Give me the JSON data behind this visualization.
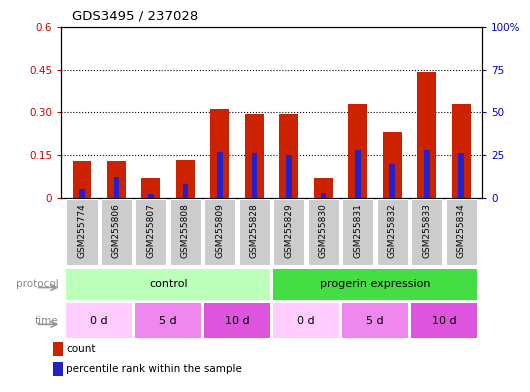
{
  "title": "GDS3495 / 237028",
  "samples": [
    "GSM255774",
    "GSM255806",
    "GSM255807",
    "GSM255808",
    "GSM255809",
    "GSM255828",
    "GSM255829",
    "GSM255830",
    "GSM255831",
    "GSM255832",
    "GSM255833",
    "GSM255834"
  ],
  "red_values": [
    0.13,
    0.13,
    0.068,
    0.132,
    0.31,
    0.295,
    0.293,
    0.068,
    0.33,
    0.23,
    0.44,
    0.33
  ],
  "blue_pct": [
    5,
    12,
    2,
    8,
    27,
    26,
    25,
    3,
    28,
    20,
    28,
    26
  ],
  "left_ylim": [
    0,
    0.6
  ],
  "right_ylim": [
    0,
    100
  ],
  "left_yticks": [
    0,
    0.15,
    0.3,
    0.45,
    0.6
  ],
  "left_yticklabels": [
    "0",
    "0.15",
    "0.30",
    "0.45",
    "0.6"
  ],
  "right_yticks": [
    0,
    25,
    50,
    75,
    100
  ],
  "right_yticklabels": [
    "0",
    "25",
    "50",
    "75",
    "100%"
  ],
  "left_color": "#cc0000",
  "right_color": "#0000cc",
  "bar_color": "#cc2200",
  "blue_color": "#2222cc",
  "protocol_groups": [
    {
      "label": "control",
      "start": 0,
      "end": 5,
      "color": "#bbffbb"
    },
    {
      "label": "progerin expression",
      "start": 6,
      "end": 11,
      "color": "#44dd44"
    }
  ],
  "time_groups": [
    {
      "label": "0 d",
      "start": 0,
      "end": 1,
      "color": "#ffccff"
    },
    {
      "label": "5 d",
      "start": 2,
      "end": 3,
      "color": "#ee88ee"
    },
    {
      "label": "10 d",
      "start": 4,
      "end": 5,
      "color": "#dd55dd"
    },
    {
      "label": "0 d",
      "start": 6,
      "end": 7,
      "color": "#ffccff"
    },
    {
      "label": "5 d",
      "start": 8,
      "end": 9,
      "color": "#ee88ee"
    },
    {
      "label": "10 d",
      "start": 10,
      "end": 11,
      "color": "#dd55dd"
    }
  ],
  "legend": [
    {
      "label": "count",
      "color": "#cc2200"
    },
    {
      "label": "percentile rank within the sample",
      "color": "#2222cc"
    }
  ]
}
